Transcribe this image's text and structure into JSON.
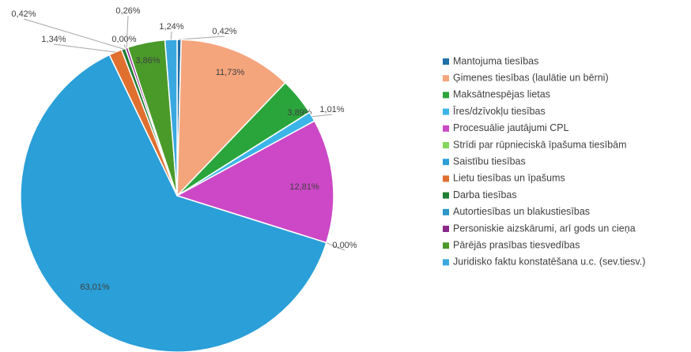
{
  "chart_data": {
    "type": "pie",
    "categories": [
      "Mantojuma tiesības",
      "Ģimenes tiesības (laulātie un bērni)",
      "Maksātnespējas lietas",
      "Īres/dzīvokļu tiesības",
      "Procesuālie jautājumi CPL",
      "Strīdi par rūpnieciskā īpašuma tiesībām",
      "Saistību tiesības",
      "Lietu tiesības un īpašums",
      "Darba tiesības",
      "Autortiesības un blakustiesības",
      "Personiskie aizskārumi, arī gods un cieņa",
      "Pārējās prasības tiesvedības",
      "Juridisko faktu konstatēšana u.c. (sev.tiesv.)"
    ],
    "values": [
      0.42,
      11.73,
      3.89,
      1.01,
      12.81,
      0.0,
      63.01,
      1.34,
      0.42,
      0.0,
      0.26,
      3.86,
      1.24
    ],
    "value_labels": [
      "0,42%",
      "11,73%",
      "3,89%",
      "1,01%",
      "12,81%",
      "0,00%",
      "63,01%",
      "1,34%",
      "0,42%",
      "0,00%",
      "0,26%",
      "3,86%",
      "1,24%"
    ],
    "colors": [
      "#1f6fa8",
      "#f4a57c",
      "#2aa53c",
      "#3bb5e8",
      "#cc48c6",
      "#82d65c",
      "#2a9fd8",
      "#e07030",
      "#1e7d32",
      "#2a98c8",
      "#8b2a8b",
      "#4a9a2a",
      "#3aa8e0"
    ],
    "legend": "right"
  }
}
